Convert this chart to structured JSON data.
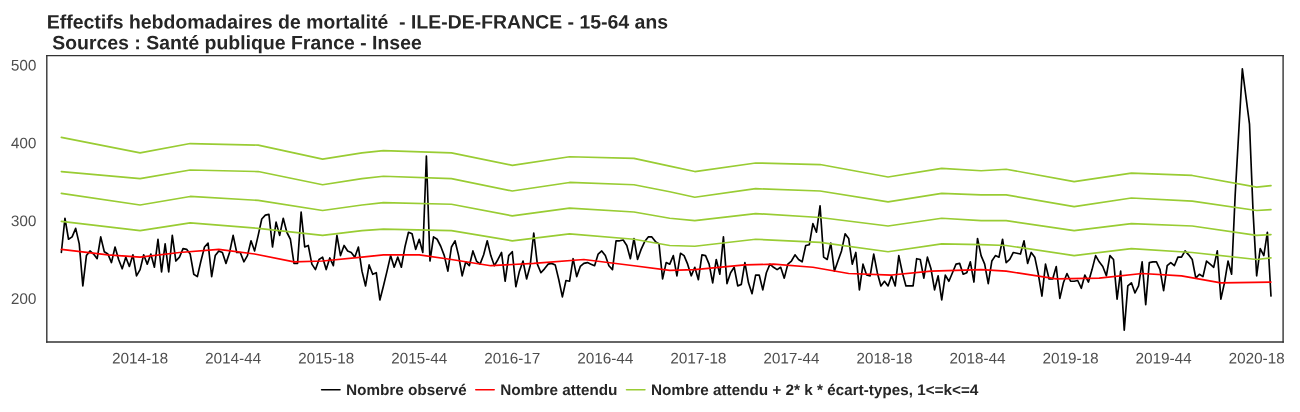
{
  "chart_data": {
    "type": "line",
    "title": "Effectifs hebdomadaires de mortalité  - ILE-DE-FRANCE - 15-64 ans",
    "subtitle": "Sources : Santé publique France - Insee",
    "categories": [
      null,
      null,
      null,
      null,
      null,
      null,
      null,
      null,
      null,
      null,
      null,
      null,
      null,
      null,
      null,
      null,
      null,
      null,
      null,
      null,
      null,
      null,
      "2014-18",
      null,
      null,
      null,
      null,
      null,
      null,
      null,
      null,
      null,
      null,
      null,
      null,
      null,
      null,
      null,
      null,
      null,
      null,
      null,
      null,
      null,
      null,
      null,
      null,
      null,
      "2014-44",
      null,
      null,
      null,
      null,
      null,
      null,
      null,
      null,
      null,
      null,
      null,
      null,
      null,
      null,
      null,
      null,
      null,
      null,
      null,
      null,
      null,
      null,
      null,
      null,
      null,
      "2015-18",
      null,
      null,
      null,
      null,
      null,
      null,
      null,
      null,
      null,
      null,
      null,
      null,
      null,
      null,
      null,
      null,
      null,
      null,
      null,
      null,
      null,
      null,
      null,
      null,
      null,
      "2015-44",
      null,
      null,
      null,
      null,
      null,
      null,
      null,
      null,
      null,
      null,
      null,
      null,
      null,
      null,
      null,
      null,
      null,
      null,
      null,
      null,
      null,
      null,
      null,
      null,
      null,
      "2016-17",
      null,
      null,
      null,
      null,
      null,
      null,
      null,
      null,
      null,
      null,
      null,
      null,
      null,
      null,
      null,
      null,
      null,
      null,
      null,
      null,
      null,
      null,
      null,
      null,
      null,
      "2016-44",
      null,
      null,
      null,
      null,
      null,
      null,
      null,
      null,
      null,
      null,
      null,
      null,
      null,
      null,
      null,
      null,
      null,
      null,
      null,
      null,
      null,
      null,
      null,
      null,
      null,
      "2017-18",
      null,
      null,
      null,
      null,
      null,
      null,
      null,
      null,
      null,
      null,
      null,
      null,
      null,
      null,
      null,
      null,
      null,
      null,
      null,
      null,
      null,
      null,
      null,
      null,
      null,
      "2017-44",
      null,
      null,
      null,
      null,
      null,
      null,
      null,
      null,
      null,
      null,
      null,
      null,
      null,
      null,
      null,
      null,
      null,
      null,
      null,
      null,
      null,
      null,
      null,
      null,
      null,
      "2018-18",
      null,
      null,
      null,
      null,
      null,
      null,
      null,
      null,
      null,
      null,
      null,
      null,
      null,
      null,
      null,
      null,
      null,
      null,
      null,
      null,
      null,
      null,
      null,
      null,
      null,
      "2018-44",
      null,
      null,
      null,
      null,
      null,
      null,
      null,
      null,
      null,
      null,
      null,
      null,
      null,
      null,
      null,
      null,
      null,
      null,
      null,
      null,
      null,
      null,
      null,
      null,
      null,
      "2019-18",
      null,
      null,
      null,
      null,
      null,
      null,
      null,
      null,
      null,
      null,
      null,
      null,
      null,
      null,
      null,
      null,
      null,
      null,
      null,
      null,
      null,
      null,
      null,
      null,
      null,
      "2019-44",
      null,
      null,
      null,
      null,
      null,
      null,
      null,
      null,
      null,
      null,
      null,
      null,
      null,
      null,
      null,
      null,
      null,
      null,
      null,
      null,
      null,
      null,
      null,
      null,
      null,
      "2020-18",
      null,
      null,
      null,
      null
    ],
    "ylim": [
      144,
      512
    ],
    "yticks": [
      200,
      300,
      400,
      500
    ],
    "grid": false,
    "legend": "bottom",
    "line_style": "solid",
    "series": [
      {
        "name": "Nombre observé",
        "color": "#000000",
        "values": [
          259,
          303,
          276,
          279,
          290,
          270,
          216,
          255,
          261,
          257,
          251,
          279,
          260,
          257,
          246,
          266,
          250,
          238,
          253,
          241,
          256,
          229,
          237,
          256,
          244,
          257,
          240,
          276,
          234,
          270,
          234,
          281,
          248,
          253,
          264,
          263,
          257,
          231,
          228,
          248,
          266,
          271,
          228,
          255,
          261,
          259,
          245,
          259,
          281,
          259,
          259,
          247,
          255,
          274,
          261,
          281,
          302,
          307,
          308,
          266,
          298,
          281,
          303,
          285,
          276,
          245,
          245,
          311,
          266,
          268,
          244,
          237,
          250,
          253,
          237,
          252,
          242,
          281,
          255,
          268,
          261,
          259,
          253,
          266,
          235,
          216,
          243,
          231,
          233,
          198,
          216,
          235,
          255,
          240,
          253,
          240,
          266,
          285,
          283,
          263,
          276,
          259,
          383,
          248,
          279,
          276,
          267,
          255,
          235,
          266,
          274,
          255,
          229,
          247,
          242,
          261,
          248,
          244,
          256,
          274,
          255,
          242,
          250,
          259,
          222,
          255,
          260,
          215,
          235,
          248,
          225,
          242,
          284,
          244,
          233,
          238,
          244,
          245,
          243,
          224,
          202,
          223,
          222,
          251,
          228,
          241,
          245,
          246,
          244,
          242,
          257,
          261,
          255,
          242,
          237,
          274,
          274,
          275,
          268,
          251,
          277,
          250,
          263,
          273,
          279,
          279,
          273,
          270,
          225,
          246,
          244,
          255,
          229,
          258,
          255,
          244,
          229,
          240,
          224,
          256,
          255,
          244,
          220,
          250,
          231,
          279,
          219,
          233,
          240,
          216,
          218,
          246,
          220,
          206,
          230,
          230,
          211,
          233,
          244,
          240,
          237,
          240,
          226,
          244,
          248,
          256,
          250,
          247,
          268,
          269,
          296,
          285,
          319,
          253,
          250,
          271,
          235,
          248,
          261,
          283,
          277,
          244,
          259,
          211,
          244,
          230,
          229,
          257,
          233,
          216,
          222,
          216,
          229,
          216,
          255,
          233,
          216,
          216,
          216,
          251,
          250,
          226,
          253,
          238,
          211,
          229,
          198,
          230,
          222,
          233,
          244,
          245,
          231,
          233,
          247,
          221,
          277,
          255,
          244,
          219,
          248,
          255,
          253,
          276,
          246,
          250,
          259,
          258,
          257,
          274,
          245,
          259,
          253,
          231,
          203,
          244,
          225,
          225,
          241,
          200,
          220,
          232,
          222,
          222,
          223,
          213,
          230,
          221,
          237,
          255,
          247,
          241,
          229,
          255,
          250,
          199,
          235,
          159,
          216,
          220,
          207,
          216,
          247,
          192,
          246,
          247,
          247,
          237,
          210,
          242,
          246,
          242,
          253,
          253,
          261,
          256,
          250,
          226,
          231,
          228,
          248,
          244,
          240,
          261,
          199,
          220,
          248,
          231,
          333,
          null,
          495,
          null,
          424,
          311,
          229,
          264,
          255,
          285,
          203
        ]
      },
      {
        "name": "Nombre attendu",
        "color": "#ff0000",
        "values": [
          263,
          null,
          null,
          null,
          null,
          null,
          null,
          null,
          null,
          null,
          null,
          null,
          null,
          256,
          null,
          null,
          null,
          null,
          null,
          null,
          null,
          null,
          253,
          null,
          null,
          null,
          null,
          null,
          null,
          null,
          null,
          null,
          null,
          259,
          null,
          null,
          null,
          null,
          null,
          null,
          null,
          null,
          null,
          null,
          263,
          null,
          null,
          null,
          null,
          null,
          null,
          null,
          null,
          null,
          257,
          null,
          null,
          null,
          null,
          null,
          null,
          null,
          null,
          null,
          null,
          247,
          null,
          null,
          null,
          null,
          null,
          null,
          null,
          248,
          null,
          null,
          null,
          null,
          null,
          null,
          null,
          null,
          null,
          null,
          253,
          null,
          null,
          null,
          null,
          null,
          256,
          null,
          null,
          null,
          null,
          null,
          null,
          null,
          null,
          null,
          256,
          null,
          null,
          null,
          null,
          null,
          null,
          null,
          null,
          250,
          null,
          null,
          null,
          null,
          null,
          null,
          null,
          null,
          null,
          null,
          242,
          null,
          null,
          null,
          null,
          null,
          null,
          null,
          null,
          null,
          null,
          null,
          245,
          null,
          null,
          null,
          null,
          null,
          null,
          null,
          null,
          null,
          null,
          null,
          null,
          null,
          250,
          null,
          null,
          null,
          null,
          null,
          null,
          null,
          null,
          null,
          null,
          null,
          null,
          null,
          242,
          null,
          null,
          null,
          null,
          null,
          null,
          null,
          null,
          null,
          236,
          null,
          null,
          null,
          null,
          null,
          null,
          237,
          null,
          null,
          null,
          null,
          null,
          null,
          null,
          null,
          null,
          null,
          null,
          null,
          null,
          243,
          null,
          null,
          null,
          null,
          null,
          null,
          null,
          244,
          null,
          null,
          null,
          null,
          null,
          null,
          null,
          null,
          null,
          null,
          240,
          null,
          null,
          null,
          null,
          null,
          null,
          null,
          null,
          null,
          232,
          null,
          null,
          null,
          null,
          null,
          null,
          null,
          null,
          null,
          null,
          null,
          230,
          null,
          null,
          null,
          null,
          null,
          null,
          null,
          null,
          null,
          null,
          235,
          null,
          null,
          null,
          null,
          null,
          null,
          null,
          null,
          null,
          null,
          null,
          null,
          null,
          237,
          null,
          null,
          null,
          null,
          null,
          null,
          235,
          null,
          null,
          null,
          null,
          null,
          null,
          null,
          null,
          null,
          null,
          null,
          null,
          null,
          225,
          null,
          null,
          null,
          null,
          null,
          null,
          null,
          null,
          null,
          null,
          null,
          226,
          null,
          null,
          null,
          null,
          null,
          null,
          null,
          null,
          null,
          null,
          null,
          232,
          null,
          null,
          null,
          null,
          null,
          null,
          null,
          null,
          null,
          null,
          229,
          null,
          null,
          null,
          null,
          null,
          null,
          null,
          null,
          null,
          null,
          220,
          null,
          null,
          null,
          null,
          null,
          null,
          null,
          null,
          null,
          null,
          null,
          null,
          null,
          221
        ]
      },
      {
        "name": "Nombre attendu + 2* k * écart-types, 1<=k<=4",
        "color": "#99cc33",
        "values": [
          299,
          null,
          null,
          null,
          null,
          null,
          null,
          null,
          null,
          null,
          null,
          null,
          null,
          null,
          null,
          null,
          null,
          null,
          null,
          null,
          null,
          null,
          287,
          null,
          null,
          null,
          null,
          null,
          null,
          null,
          null,
          null,
          null,
          null,
          null,
          null,
          297,
          null,
          null,
          null,
          null,
          null,
          null,
          null,
          null,
          null,
          null,
          null,
          null,
          null,
          null,
          null,
          null,
          null,
          null,
          290,
          null,
          null,
          null,
          null,
          null,
          null,
          null,
          null,
          null,
          null,
          null,
          null,
          null,
          null,
          null,
          null,
          null,
          281,
          null,
          null,
          null,
          null,
          null,
          null,
          null,
          null,
          null,
          null,
          287,
          null,
          null,
          null,
          null,
          null,
          289,
          null,
          null,
          null,
          null,
          null,
          null,
          null,
          null,
          null,
          null,
          null,
          null,
          null,
          null,
          null,
          null,
          null,
          null,
          287,
          null,
          null,
          null,
          null,
          null,
          null,
          null,
          null,
          null,
          null,
          null,
          null,
          null,
          null,
          null,
          null,
          274,
          null,
          null,
          null,
          null,
          null,
          null,
          null,
          null,
          null,
          null,
          null,
          null,
          null,
          null,
          null,
          283,
          null,
          null,
          null,
          null,
          null,
          null,
          null,
          null,
          null,
          null,
          null,
          null,
          null,
          null,
          null,
          null,
          null,
          276,
          null,
          null,
          null,
          null,
          null,
          null,
          null,
          null,
          null,
          268,
          null,
          null,
          null,
          null,
          null,
          null,
          267,
          null,
          null,
          null,
          null,
          null,
          null,
          null,
          null,
          null,
          null,
          null,
          null,
          null,
          null,
          null,
          null,
          276,
          null,
          null,
          null,
          null,
          null,
          null,
          null,
          null,
          null,
          null,
          null,
          null,
          null,
          null,
          null,
          null,
          null,
          272,
          null,
          null,
          null,
          null,
          null,
          null,
          null,
          null,
          null,
          null,
          null,
          null,
          null,
          null,
          null,
          null,
          null,
          null,
          260,
          null,
          null,
          null,
          null,
          null,
          null,
          null,
          null,
          null,
          null,
          null,
          null,
          null,
          null,
          270,
          null,
          null,
          null,
          null,
          null,
          null,
          null,
          null,
          null,
          null,
          269,
          null,
          null,
          null,
          null,
          null,
          null,
          268,
          null,
          null,
          null,
          null,
          null,
          null,
          null,
          null,
          null,
          null,
          null,
          null,
          null,
          null,
          null,
          null,
          null,
          null,
          255,
          null,
          null,
          null,
          null,
          null,
          null,
          null,
          null,
          null,
          null,
          null,
          null,
          null,
          null,
          null,
          264,
          null,
          null,
          null,
          null,
          null,
          null,
          null,
          null,
          null,
          null,
          null,
          null,
          null,
          null,
          null,
          null,
          259,
          null,
          null,
          null,
          null,
          null,
          null,
          null,
          null,
          null,
          null,
          null,
          null,
          null,
          null,
          null,
          null,
          null,
          250,
          null,
          null,
          null,
          252
        ]
      },
      {
        "color": "#99cc33",
        "values": [
          335,
          null,
          null,
          null,
          null,
          null,
          null,
          null,
          null,
          null,
          null,
          null,
          null,
          null,
          null,
          null,
          null,
          null,
          null,
          null,
          null,
          null,
          320,
          null,
          null,
          null,
          null,
          null,
          null,
          null,
          null,
          null,
          null,
          null,
          null,
          null,
          331,
          null,
          null,
          null,
          null,
          null,
          null,
          null,
          null,
          null,
          null,
          null,
          null,
          null,
          null,
          null,
          null,
          null,
          null,
          326,
          null,
          null,
          null,
          null,
          null,
          null,
          null,
          null,
          null,
          null,
          null,
          null,
          null,
          null,
          null,
          null,
          null,
          313,
          null,
          null,
          null,
          null,
          null,
          null,
          null,
          null,
          null,
          null,
          320,
          null,
          null,
          null,
          null,
          null,
          323,
          null,
          null,
          null,
          null,
          null,
          null,
          null,
          null,
          null,
          null,
          null,
          null,
          null,
          null,
          null,
          null,
          null,
          null,
          321,
          null,
          null,
          null,
          null,
          null,
          null,
          null,
          null,
          null,
          null,
          null,
          null,
          null,
          null,
          null,
          null,
          306,
          null,
          null,
          null,
          null,
          null,
          null,
          null,
          null,
          null,
          null,
          null,
          null,
          null,
          null,
          null,
          316,
          null,
          null,
          null,
          null,
          null,
          null,
          null,
          null,
          null,
          null,
          null,
          null,
          null,
          null,
          null,
          null,
          null,
          311,
          null,
          null,
          null,
          null,
          null,
          null,
          null,
          null,
          null,
          303,
          null,
          null,
          null,
          null,
          null,
          null,
          300,
          null,
          null,
          null,
          null,
          null,
          null,
          null,
          null,
          null,
          null,
          null,
          null,
          null,
          null,
          null,
          null,
          309,
          null,
          null,
          null,
          null,
          null,
          null,
          null,
          null,
          null,
          null,
          null,
          null,
          null,
          null,
          null,
          null,
          null,
          304,
          null,
          null,
          null,
          null,
          null,
          null,
          null,
          null,
          null,
          null,
          null,
          null,
          null,
          null,
          null,
          null,
          null,
          null,
          293,
          null,
          null,
          null,
          null,
          null,
          null,
          null,
          null,
          null,
          null,
          null,
          null,
          null,
          null,
          303,
          null,
          null,
          null,
          null,
          null,
          null,
          null,
          null,
          null,
          null,
          300,
          null,
          null,
          null,
          null,
          null,
          null,
          300,
          null,
          null,
          null,
          null,
          null,
          null,
          null,
          null,
          null,
          null,
          null,
          null,
          null,
          null,
          null,
          null,
          null,
          null,
          287,
          null,
          null,
          null,
          null,
          null,
          null,
          null,
          null,
          null,
          null,
          null,
          null,
          null,
          null,
          null,
          296,
          null,
          null,
          null,
          null,
          null,
          null,
          null,
          null,
          null,
          null,
          null,
          null,
          null,
          null,
          null,
          null,
          293,
          null,
          null,
          null,
          null,
          null,
          null,
          null,
          null,
          null,
          null,
          null,
          null,
          null,
          null,
          null,
          null,
          null,
          281,
          null,
          null,
          null,
          282
        ]
      },
      {
        "color": "#99cc33",
        "values": [
          363,
          null,
          null,
          null,
          null,
          null,
          null,
          null,
          null,
          null,
          null,
          null,
          null,
          null,
          null,
          null,
          null,
          null,
          null,
          null,
          null,
          null,
          354,
          null,
          null,
          null,
          null,
          null,
          null,
          null,
          null,
          null,
          null,
          null,
          null,
          null,
          365,
          null,
          null,
          null,
          null,
          null,
          null,
          null,
          null,
          null,
          null,
          null,
          null,
          null,
          null,
          null,
          null,
          null,
          null,
          363,
          null,
          null,
          null,
          null,
          null,
          null,
          null,
          null,
          null,
          null,
          null,
          null,
          null,
          null,
          null,
          null,
          null,
          346,
          null,
          null,
          null,
          null,
          null,
          null,
          null,
          null,
          null,
          null,
          354,
          null,
          null,
          null,
          null,
          null,
          357,
          null,
          null,
          null,
          null,
          null,
          null,
          null,
          null,
          null,
          null,
          null,
          null,
          null,
          null,
          null,
          null,
          null,
          null,
          354,
          null,
          null,
          null,
          null,
          null,
          null,
          null,
          null,
          null,
          null,
          null,
          null,
          null,
          null,
          null,
          null,
          338,
          null,
          null,
          null,
          null,
          null,
          null,
          null,
          null,
          null,
          null,
          null,
          null,
          null,
          null,
          null,
          349,
          null,
          null,
          null,
          null,
          null,
          null,
          null,
          null,
          null,
          null,
          null,
          null,
          null,
          null,
          null,
          null,
          null,
          346,
          null,
          null,
          null,
          null,
          null,
          null,
          null,
          null,
          null,
          337,
          null,
          null,
          null,
          null,
          null,
          null,
          330,
          null,
          null,
          null,
          null,
          null,
          null,
          null,
          null,
          null,
          null,
          null,
          null,
          null,
          null,
          null,
          null,
          341,
          null,
          null,
          null,
          null,
          null,
          null,
          null,
          null,
          null,
          null,
          null,
          null,
          null,
          null,
          null,
          null,
          null,
          338,
          null,
          null,
          null,
          null,
          null,
          null,
          null,
          null,
          null,
          null,
          null,
          null,
          null,
          null,
          null,
          null,
          null,
          null,
          324,
          null,
          null,
          null,
          null,
          null,
          null,
          null,
          null,
          null,
          null,
          null,
          null,
          null,
          null,
          335,
          null,
          null,
          null,
          null,
          null,
          null,
          null,
          null,
          null,
          null,
          333,
          null,
          null,
          null,
          null,
          null,
          null,
          333,
          null,
          null,
          null,
          null,
          null,
          null,
          null,
          null,
          null,
          null,
          null,
          null,
          null,
          null,
          null,
          null,
          null,
          null,
          318,
          null,
          null,
          null,
          null,
          null,
          null,
          null,
          null,
          null,
          null,
          null,
          null,
          null,
          null,
          null,
          329,
          null,
          null,
          null,
          null,
          null,
          null,
          null,
          null,
          null,
          null,
          null,
          null,
          null,
          null,
          null,
          null,
          325,
          null,
          null,
          null,
          null,
          null,
          null,
          null,
          null,
          null,
          null,
          null,
          null,
          null,
          null,
          null,
          null,
          null,
          313,
          null,
          null,
          null,
          314
        ]
      },
      {
        "color": "#99cc33",
        "values": [
          407,
          null,
          null,
          null,
          null,
          null,
          null,
          null,
          null,
          null,
          null,
          null,
          null,
          null,
          null,
          null,
          null,
          null,
          null,
          null,
          null,
          null,
          387,
          null,
          null,
          null,
          null,
          null,
          null,
          null,
          null,
          null,
          null,
          null,
          null,
          null,
          399,
          null,
          null,
          null,
          null,
          null,
          null,
          null,
          null,
          null,
          null,
          null,
          null,
          null,
          null,
          null,
          null,
          null,
          null,
          397,
          null,
          null,
          null,
          null,
          null,
          null,
          null,
          null,
          null,
          null,
          null,
          null,
          null,
          null,
          null,
          null,
          null,
          379,
          null,
          null,
          null,
          null,
          null,
          null,
          null,
          null,
          null,
          null,
          387,
          null,
          null,
          null,
          null,
          null,
          390,
          null,
          null,
          null,
          null,
          null,
          null,
          null,
          null,
          null,
          null,
          null,
          null,
          null,
          null,
          null,
          null,
          null,
          null,
          387,
          null,
          null,
          null,
          null,
          null,
          null,
          null,
          null,
          null,
          null,
          null,
          null,
          null,
          null,
          null,
          null,
          371,
          null,
          null,
          null,
          null,
          null,
          null,
          null,
          null,
          null,
          null,
          null,
          null,
          null,
          null,
          null,
          382,
          null,
          null,
          null,
          null,
          null,
          null,
          null,
          null,
          null,
          null,
          null,
          null,
          null,
          null,
          null,
          null,
          null,
          380,
          null,
          null,
          null,
          null,
          null,
          null,
          null,
          null,
          null,
          370,
          null,
          null,
          null,
          null,
          null,
          null,
          363,
          null,
          null,
          null,
          null,
          null,
          null,
          null,
          null,
          null,
          null,
          null,
          null,
          null,
          null,
          null,
          null,
          374,
          null,
          null,
          null,
          null,
          null,
          null,
          null,
          null,
          null,
          null,
          null,
          null,
          null,
          null,
          null,
          null,
          null,
          372,
          null,
          null,
          null,
          null,
          null,
          null,
          null,
          null,
          null,
          null,
          null,
          null,
          null,
          null,
          null,
          null,
          null,
          null,
          356,
          null,
          null,
          null,
          null,
          null,
          null,
          null,
          null,
          null,
          null,
          null,
          null,
          null,
          null,
          367,
          null,
          null,
          null,
          null,
          null,
          null,
          null,
          null,
          null,
          null,
          364,
          null,
          null,
          null,
          null,
          null,
          null,
          366,
          null,
          null,
          null,
          null,
          null,
          null,
          null,
          null,
          null,
          null,
          null,
          null,
          null,
          null,
          null,
          null,
          null,
          null,
          350,
          null,
          null,
          null,
          null,
          null,
          null,
          null,
          null,
          null,
          null,
          null,
          null,
          null,
          null,
          null,
          361,
          null,
          null,
          null,
          null,
          null,
          null,
          null,
          null,
          null,
          null,
          null,
          null,
          null,
          null,
          null,
          null,
          358,
          null,
          null,
          null,
          null,
          null,
          null,
          null,
          null,
          null,
          null,
          null,
          null,
          null,
          null,
          null,
          null,
          null,
          343,
          null,
          null,
          null,
          345
        ]
      }
    ]
  }
}
